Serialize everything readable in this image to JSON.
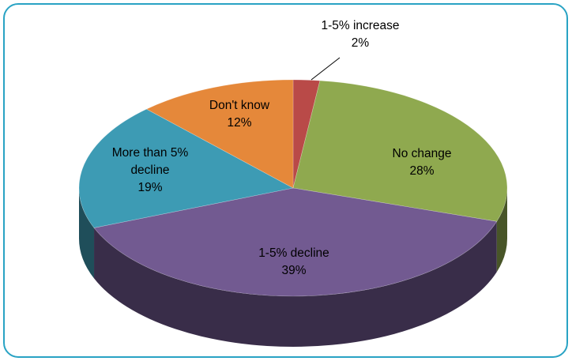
{
  "chart_data": {
    "type": "pie",
    "categories": [
      "1-5% increase",
      "No change",
      "1-5% decline",
      "More than 5% decline",
      "Don't know"
    ],
    "values": [
      2,
      28,
      39,
      19,
      12
    ],
    "value_labels": [
      "2%",
      "28%",
      "39%",
      "19%",
      "12%"
    ],
    "colors": [
      "#b94a48",
      "#8fa94f",
      "#725a91",
      "#3d9bb4",
      "#e5883a"
    ]
  }
}
